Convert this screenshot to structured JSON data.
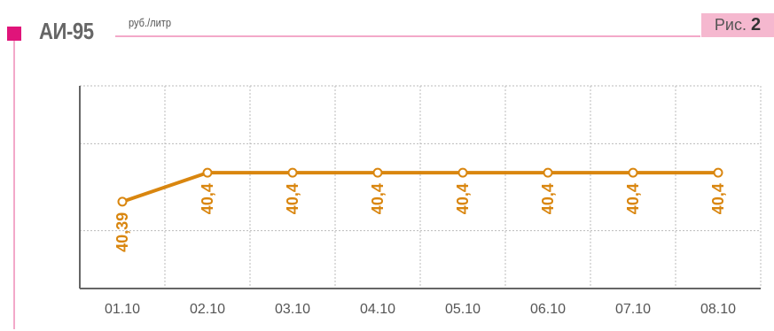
{
  "header": {
    "title": "АИ-95",
    "unit": "руб./литр",
    "figure_prefix": "Рис.",
    "figure_number": "2"
  },
  "chart_data": {
    "type": "line",
    "title": "АИ-95",
    "ylabel": "руб./литр",
    "xlabel": "",
    "categories": [
      "01.10",
      "02.10",
      "03.10",
      "04.10",
      "05.10",
      "06.10",
      "07.10",
      "08.10"
    ],
    "series": [
      {
        "values": [
          40.39,
          40.4,
          40.4,
          40.4,
          40.4,
          40.4,
          40.4,
          40.4
        ],
        "labels": [
          "40,39",
          "40,4",
          "40,4",
          "40,4",
          "40,4",
          "40,4",
          "40,4",
          "40,4"
        ]
      }
    ],
    "ylim": [
      40.36,
      40.43
    ],
    "grid": true,
    "colors": {
      "line": "#d9860f",
      "grid": "#bbbbbb",
      "axis": "#666666",
      "accent": "#e0147a"
    }
  }
}
